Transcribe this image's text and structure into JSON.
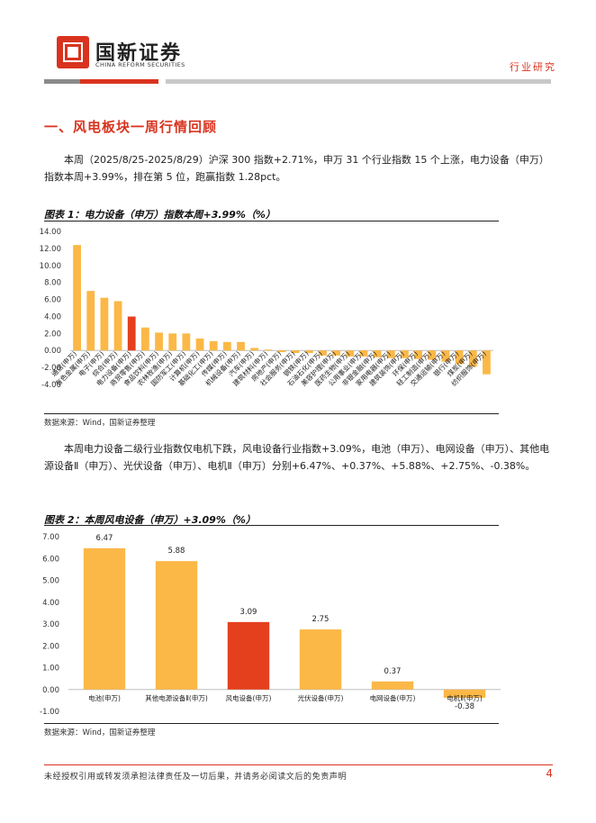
{
  "header": {
    "brand_cn": "国新证券",
    "brand_en": "CHINA REFORM SECURITIES",
    "category": "行业研究"
  },
  "section": {
    "title": "一、风电板块一周行情回顾"
  },
  "paragraphs": {
    "p1": "本周（2025/8/25-2025/8/29）沪深 300 指数+2.71%，申万 31 个行业指数 15 个上涨，电力设备（申万）指数本周+3.99%，排在第 5 位，跑赢指数 1.28pct。",
    "p2": "本周电力设备二级行业指数仅电机下跌，风电设备行业指数+3.09%，电池（申万）、电网设备（申万）、其他电源设备Ⅱ（申万）、光伏设备（申万）、电机Ⅱ（申万）分别+6.47%、+0.37%、+5.88%、+2.75%、-0.38%。"
  },
  "figure1": {
    "title": "图表 1：电力设备（申万）指数本周+3.99%（%）",
    "source": "数据来源：Wind，国新证券整理"
  },
  "figure2": {
    "title": "图表 2：本周风电设备（申万）+3.09%（%）",
    "source": "数据来源：Wind，国新证券整理"
  },
  "footer": {
    "disclaimer": "未经授权引用或转发须承担法律责任及一切后果，并请务必阅读文后的免责声明",
    "page": "4"
  },
  "chart_data": [
    {
      "type": "bar",
      "categories": [
        "通信(申万)",
        "有色金属(申万)",
        "电子(申万)",
        "综合(申万)",
        "电力设备(申万)",
        "商贸零售(申万)",
        "食品饮料(申万)",
        "农林牧渔(申万)",
        "国防军工(申万)",
        "计算机(申万)",
        "基础化工(申万)",
        "传媒(申万)",
        "机械设备(申万)",
        "汽车(申万)",
        "建筑材料(申万)",
        "房地产(申万)",
        "社会服务(申万)",
        "钢铁(申万)",
        "石油石化(申万)",
        "美容护理(申万)",
        "医药生物(申万)",
        "公用事业(申万)",
        "非银金融(申万)",
        "家用电器(申万)",
        "建筑装饰(申万)",
        "环保(申万)",
        "轻工制造(申万)",
        "交通运输(申万)",
        "银行(申万)",
        "煤炭(申万)",
        "纺织服饰(申万)"
      ],
      "values": [
        12.4,
        7.0,
        6.2,
        5.8,
        3.99,
        2.7,
        2.1,
        2.0,
        2.0,
        1.4,
        1.1,
        1.0,
        1.0,
        0.3,
        0.1,
        -0.2,
        -0.3,
        -0.3,
        -0.6,
        -0.6,
        -0.7,
        -0.7,
        -0.8,
        -0.9,
        -0.9,
        -1.0,
        -1.1,
        -1.3,
        -1.6,
        -1.9,
        -2.8
      ],
      "highlight_index": 4,
      "yticks": [
        "14.00",
        "12.00",
        "10.00",
        "8.00",
        "6.00",
        "4.00",
        "2.00",
        "0.00",
        "-2.00",
        "-4.00"
      ],
      "ylim": [
        -4,
        14
      ],
      "colors": {
        "bar": "#fbb847",
        "highlight": "#e5401e"
      }
    },
    {
      "type": "bar",
      "categories": [
        "电池(申万)",
        "其他电源设备Ⅱ(申万)",
        "风电设备(申万)",
        "光伏设备(申万)",
        "电网设备(申万)",
        "电机Ⅱ(申万)"
      ],
      "values": [
        6.47,
        5.88,
        3.09,
        2.75,
        0.37,
        -0.38
      ],
      "value_labels": [
        "6.47",
        "5.88",
        "3.09",
        "2.75",
        "0.37",
        "-0.38"
      ],
      "highlight_index": 2,
      "yticks": [
        "7.00",
        "6.00",
        "5.00",
        "4.00",
        "3.00",
        "2.00",
        "1.00",
        "0.00",
        "-1.00"
      ],
      "ylim": [
        -1,
        7
      ],
      "colors": {
        "bar": "#fbb847",
        "highlight": "#e5401e"
      }
    }
  ]
}
